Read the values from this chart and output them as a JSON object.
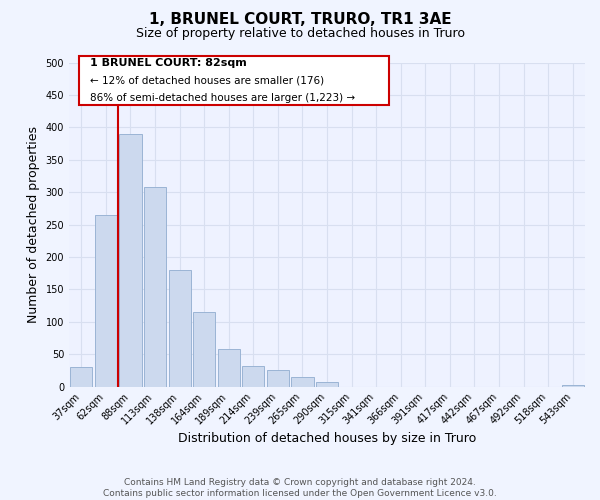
{
  "title": "1, BRUNEL COURT, TRURO, TR1 3AE",
  "subtitle": "Size of property relative to detached houses in Truro",
  "xlabel": "Distribution of detached houses by size in Truro",
  "ylabel": "Number of detached properties",
  "bar_labels": [
    "37sqm",
    "62sqm",
    "88sqm",
    "113sqm",
    "138sqm",
    "164sqm",
    "189sqm",
    "214sqm",
    "239sqm",
    "265sqm",
    "290sqm",
    "315sqm",
    "341sqm",
    "366sqm",
    "391sqm",
    "417sqm",
    "442sqm",
    "467sqm",
    "492sqm",
    "518sqm",
    "543sqm"
  ],
  "bar_values": [
    30,
    265,
    390,
    308,
    180,
    115,
    58,
    32,
    26,
    15,
    7,
    0,
    0,
    0,
    0,
    0,
    0,
    0,
    0,
    0,
    3
  ],
  "bar_color": "#ccd9ee",
  "bar_edge_color": "#9ab4d4",
  "annotation_title": "1 BRUNEL COURT: 82sqm",
  "annotation_line1": "← 12% of detached houses are smaller (176)",
  "annotation_line2": "86% of semi-detached houses are larger (1,223) →",
  "marker_line_color": "#cc0000",
  "annotation_box_edge": "#cc0000",
  "ylim": [
    0,
    500
  ],
  "yticks": [
    0,
    50,
    100,
    150,
    200,
    250,
    300,
    350,
    400,
    450,
    500
  ],
  "footer_line1": "Contains HM Land Registry data © Crown copyright and database right 2024.",
  "footer_line2": "Contains public sector information licensed under the Open Government Licence v3.0.",
  "background_color": "#f0f4ff",
  "plot_bg_color": "#eef2ff",
  "grid_color": "#d8dff0",
  "title_fontsize": 11,
  "subtitle_fontsize": 9,
  "axis_label_fontsize": 9,
  "tick_fontsize": 7,
  "footer_fontsize": 6.5
}
